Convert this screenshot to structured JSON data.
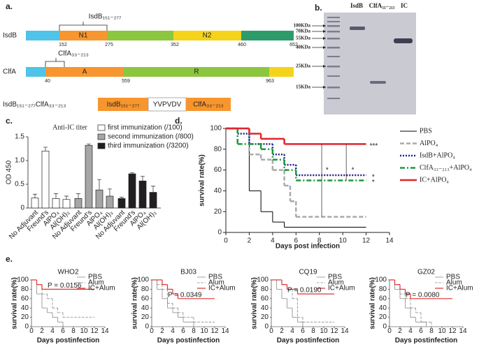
{
  "panel_labels": [
    "a.",
    "b.",
    "c.",
    "d.",
    "e."
  ],
  "diagram": {
    "proteins": [
      {
        "name": "IsdB",
        "domains": [
          "N1",
          "N2"
        ],
        "positions": [
          152,
          275,
          352,
          460,
          652
        ],
        "fragment": "IsdB₁₅₁₋₂₇₇"
      },
      {
        "name": "ClfA",
        "domains": [
          "A",
          "R"
        ],
        "positions": [
          40,
          559,
          963
        ],
        "fragment": "ClfA₃₃₋₂₁₃"
      }
    ],
    "fusion": {
      "name": "IsdB₁₅₁₋₂₇₇ClfA₃₃₋₂₁₃",
      "parts": [
        "IsdB₁₅₁₋₂₇₇",
        "YVPVDV",
        "ClfA₃₃₋₂₁₃"
      ]
    }
  },
  "gel": {
    "lanes": [
      "IsdB",
      "ClfA₃₃₋₂₁₃",
      "IC"
    ],
    "markers": [
      "100KDa",
      "70KDa",
      "55KDa",
      "40KDa",
      "25KDa",
      "15KDa"
    ]
  },
  "chart_data": [
    {
      "type": "bar",
      "title": "Anti-IC titer",
      "ylabel": "OD 450",
      "categories": [
        "No Adjuvant",
        "Freund's",
        "AlPO₄",
        "Al(OH)₃"
      ],
      "series": [
        {
          "name": "first immunization (/100)",
          "color": "#ffffff",
          "values": [
            0.21,
            1.2,
            0.2,
            0.18
          ],
          "errors": [
            0.08,
            0.08,
            0.1,
            0.07
          ]
        },
        {
          "name": "second immunization (/800)",
          "color": "#a6a6a6",
          "values": [
            0.2,
            1.32,
            0.38,
            0.25
          ],
          "errors": [
            0.1,
            0.03,
            0.22,
            0.15
          ]
        },
        {
          "name": "third immunization (/3200)",
          "color": "#231f20",
          "values": [
            0.2,
            0.72,
            0.57,
            0.33
          ],
          "errors": [
            0.03,
            0.02,
            0.1,
            0.13
          ]
        }
      ],
      "ylim": [
        0,
        1.5
      ],
      "yticks": [
        0,
        0.5,
        {
          "value": 1,
          "label": "1.0"
        },
        1.5
      ],
      "legend": "upper right"
    },
    {
      "type": "step",
      "xlabel": "Days post infection",
      "ylabel": "survival rate(%)",
      "xlim": [
        0,
        14
      ],
      "ylim": [
        0,
        100
      ],
      "xticks": [
        0,
        2,
        4,
        6,
        8,
        10,
        12,
        14
      ],
      "yticks": [
        0,
        20,
        40,
        60,
        80,
        100
      ],
      "legend": "right",
      "series": [
        {
          "name": "PBS",
          "color": "#000000",
          "dash": "solid",
          "width": 1,
          "x": [
            0,
            2,
            3,
            4,
            5,
            12
          ],
          "values": [
            100,
            40,
            20,
            10,
            5,
            5
          ]
        },
        {
          "name": "AlPO₄",
          "color": "#aaaaaa",
          "dash": "dashed",
          "width": 2.5,
          "x": [
            0,
            2,
            3,
            4,
            5,
            5.5,
            6,
            12
          ],
          "values": [
            100,
            75,
            70,
            60,
            45,
            30,
            15,
            15
          ]
        },
        {
          "name": "IsdB+AlPO₄",
          "color": "#1f1f8a",
          "dash": "dotted",
          "width": 2.5,
          "x": [
            0,
            1,
            2,
            4,
            5,
            6,
            12
          ],
          "values": [
            100,
            95,
            85,
            75,
            65,
            55,
            55
          ]
        },
        {
          "name": "ClfA₃₃₋₂₁₃+AlPO₄",
          "color": "#1a9a3a",
          "dash": "dashdot",
          "width": 2.5,
          "x": [
            0,
            1,
            3,
            4,
            5,
            6,
            12
          ],
          "values": [
            100,
            85,
            80,
            70,
            60,
            50,
            50
          ]
        },
        {
          "name": "IC+AlPO₄",
          "color": "#e0252b",
          "dash": "solid",
          "width": 2.5,
          "x": [
            0,
            2,
            3,
            5,
            12
          ],
          "values": [
            100,
            95,
            90,
            85,
            85
          ]
        }
      ],
      "annotations": [
        "***",
        "*",
        "*",
        "*",
        "*"
      ]
    },
    {
      "type": "step",
      "title": "WHO2",
      "annotation": "P = 0.0156",
      "xlabel": "Days postinfection",
      "ylabel": "survival rate(%)",
      "xlim": [
        0,
        14
      ],
      "ylim": [
        0,
        100
      ],
      "xticks": [
        0,
        2,
        4,
        6,
        8,
        10,
        12,
        14
      ],
      "yticks": [
        0,
        20,
        40,
        60,
        80,
        100
      ],
      "legend": "upper right",
      "series": [
        {
          "name": "PBS",
          "color": "#888888",
          "dash": "solid",
          "width": 0.8,
          "x": [
            0,
            1,
            2,
            3,
            4,
            5,
            6
          ],
          "values": [
            100,
            70,
            40,
            30,
            20,
            10,
            0
          ]
        },
        {
          "name": "Alum",
          "color": "#888888",
          "dash": "dashed",
          "width": 0.8,
          "x": [
            0,
            1,
            2,
            3,
            4,
            5,
            6,
            12
          ],
          "values": [
            100,
            90,
            70,
            60,
            40,
            30,
            20,
            20
          ]
        },
        {
          "name": "IC+Alum",
          "color": "#e03030",
          "dash": "solid",
          "width": 1.2,
          "x": [
            0,
            1,
            2,
            12
          ],
          "values": [
            100,
            90,
            80,
            80
          ]
        }
      ]
    },
    {
      "type": "step",
      "title": "BJ03",
      "annotation": "P = 0.0349",
      "xlabel": "Days postinfection",
      "ylabel": "survival rate(%)",
      "xlim": [
        0,
        14
      ],
      "ylim": [
        0,
        100
      ],
      "xticks": [
        0,
        2,
        4,
        6,
        8,
        10,
        12,
        14
      ],
      "yticks": [
        0,
        20,
        40,
        60,
        80,
        100
      ],
      "legend": "upper right",
      "series": [
        {
          "name": "PBS",
          "color": "#888888",
          "dash": "solid",
          "width": 0.8,
          "x": [
            0,
            1,
            2,
            3,
            4,
            5,
            6,
            8
          ],
          "values": [
            100,
            80,
            60,
            40,
            30,
            20,
            10,
            0
          ]
        },
        {
          "name": "Alum",
          "color": "#888888",
          "dash": "dashed",
          "width": 0.8,
          "x": [
            0,
            1,
            2,
            3,
            4,
            5,
            6,
            8,
            12
          ],
          "values": [
            100,
            90,
            80,
            50,
            40,
            30,
            20,
            10,
            10
          ]
        },
        {
          "name": "IC+Alum",
          "color": "#e03030",
          "dash": "solid",
          "width": 1.2,
          "x": [
            0,
            2,
            3,
            4,
            5,
            12
          ],
          "values": [
            100,
            90,
            80,
            70,
            60,
            60
          ]
        }
      ]
    },
    {
      "type": "step",
      "title": "CQ19",
      "annotation": "P = 0.0190",
      "xlabel": "Days postinfection",
      "ylabel": "survival rate(%)",
      "xlim": [
        0,
        14
      ],
      "ylim": [
        0,
        100
      ],
      "xticks": [
        0,
        2,
        4,
        6,
        8,
        10,
        12,
        14
      ],
      "yticks": [
        0,
        20,
        40,
        60,
        80,
        100
      ],
      "legend": "upper right",
      "series": [
        {
          "name": "PBS",
          "color": "#888888",
          "dash": "solid",
          "width": 0.8,
          "x": [
            0,
            1,
            2,
            3,
            4,
            5,
            6
          ],
          "values": [
            100,
            80,
            60,
            40,
            20,
            10,
            0
          ]
        },
        {
          "name": "Alum",
          "color": "#888888",
          "dash": "dashed",
          "width": 0.8,
          "x": [
            0,
            2,
            3,
            4,
            5,
            6,
            12
          ],
          "values": [
            100,
            90,
            80,
            60,
            20,
            10,
            10
          ]
        },
        {
          "name": "IC+Alum",
          "color": "#e03030",
          "dash": "solid",
          "width": 1.2,
          "x": [
            0,
            2,
            3,
            5,
            12
          ],
          "values": [
            100,
            90,
            80,
            70,
            70
          ]
        }
      ]
    },
    {
      "type": "step",
      "title": "GZ02",
      "annotation": "P = 0.0080",
      "xlabel": "Days postinfection",
      "ylabel": "survival rate(%)",
      "xlim": [
        0,
        14
      ],
      "ylim": [
        0,
        100
      ],
      "xticks": [
        0,
        2,
        4,
        6,
        8,
        10,
        12,
        14
      ],
      "yticks": [
        0,
        20,
        40,
        60,
        80,
        100
      ],
      "legend": "upper right",
      "series": [
        {
          "name": "PBS",
          "color": "#888888",
          "dash": "solid",
          "width": 0.8,
          "x": [
            0,
            1,
            2,
            3,
            4,
            5,
            7
          ],
          "values": [
            100,
            80,
            60,
            40,
            20,
            10,
            0
          ]
        },
        {
          "name": "Alum",
          "color": "#888888",
          "dash": "dashed",
          "width": 0.8,
          "x": [
            0,
            1,
            2,
            3,
            4,
            5,
            6,
            8
          ],
          "values": [
            100,
            90,
            70,
            60,
            40,
            30,
            10,
            0
          ]
        },
        {
          "name": "IC+Alum",
          "color": "#e03030",
          "dash": "solid",
          "width": 1.2,
          "x": [
            0,
            1,
            2,
            3,
            4,
            12
          ],
          "values": [
            100,
            90,
            80,
            70,
            60,
            60
          ]
        }
      ]
    }
  ]
}
